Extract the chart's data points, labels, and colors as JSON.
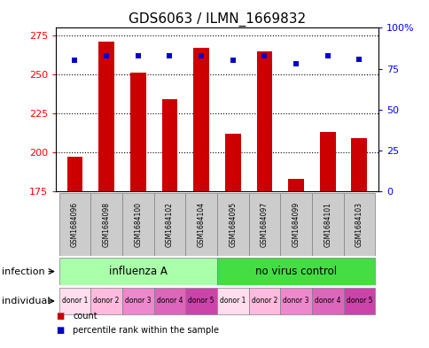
{
  "title": "GDS6063 / ILMN_1669832",
  "samples": [
    "GSM1684096",
    "GSM1684098",
    "GSM1684100",
    "GSM1684102",
    "GSM1684104",
    "GSM1684095",
    "GSM1684097",
    "GSM1684099",
    "GSM1684101",
    "GSM1684103"
  ],
  "bar_heights": [
    197,
    271,
    251,
    234,
    267,
    212,
    265,
    183,
    213,
    209
  ],
  "percentile_values": [
    80,
    83,
    83,
    83,
    83,
    80,
    83,
    78,
    83,
    81
  ],
  "bar_color": "#cc0000",
  "dot_color": "#0000cc",
  "ylim_left": [
    175,
    280
  ],
  "ylim_right": [
    0,
    100
  ],
  "yticks_left": [
    175,
    200,
    225,
    250,
    275
  ],
  "yticks_right": [
    0,
    25,
    50,
    75,
    100
  ],
  "ytick_labels_right": [
    "0",
    "25",
    "50",
    "75",
    "100%"
  ],
  "infection_labels": [
    "influenza A",
    "no virus control"
  ],
  "infection_colors": [
    "#aaffaa",
    "#44dd44"
  ],
  "individual_labels": [
    "donor 1",
    "donor 2",
    "donor 3",
    "donor 4",
    "donor 5",
    "donor 1",
    "donor 2",
    "donor 3",
    "donor 4",
    "donor 5"
  ],
  "individual_colors": [
    "#ffddee",
    "#ffbbdd",
    "#ee88cc",
    "#dd66bb",
    "#cc44aa",
    "#ffddee",
    "#ffbbdd",
    "#ee88cc",
    "#dd66bb",
    "#cc44aa"
  ],
  "row_label_infection": "infection",
  "row_label_individual": "individual",
  "legend_count_color": "#cc0000",
  "legend_dot_color": "#0000cc",
  "legend_count_label": "count",
  "legend_dot_label": "percentile rank within the sample",
  "background_color": "#ffffff",
  "bar_width": 0.5,
  "title_fontsize": 11,
  "tick_fontsize": 8,
  "sample_box_color": "#cccccc"
}
